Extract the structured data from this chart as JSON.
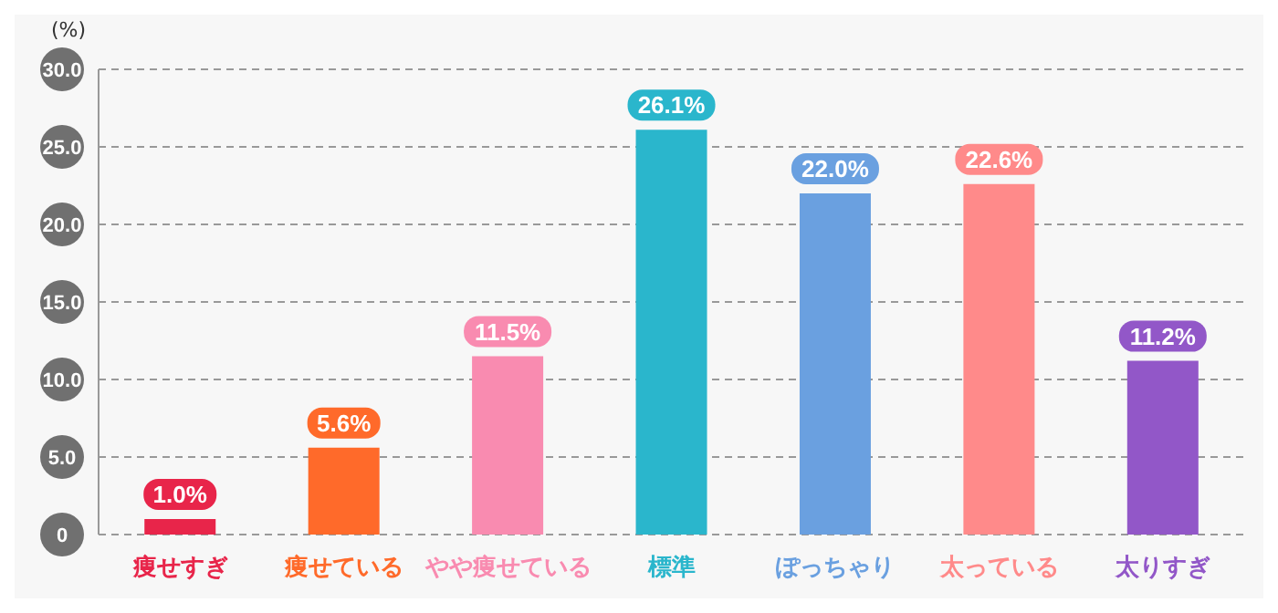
{
  "chart_data": {
    "type": "bar",
    "ylabel": "(%)",
    "categories": [
      "痩せすぎ",
      "痩せている",
      "やや痩せている",
      "標準",
      "ぽっちゃり",
      "太っている",
      "太りすぎ"
    ],
    "values": [
      1.0,
      5.6,
      11.5,
      26.1,
      22.0,
      22.6,
      11.2
    ],
    "colors": [
      "#e8254a",
      "#ff6a2a",
      "#f98bb0",
      "#2ab6cc",
      "#6aa0e0",
      "#ff8a8a",
      "#9257c8"
    ],
    "value_labels": [
      "1.0%",
      "5.6%",
      "11.5%",
      "26.1%",
      "22.0%",
      "22.6%",
      "11.2%"
    ],
    "ylim": [
      0,
      30
    ],
    "yticks": [
      0,
      {
        "value": 5,
        "label": "5.0"
      },
      {
        "value": 10,
        "label": "10.0"
      },
      {
        "value": 15,
        "label": "15.0"
      },
      {
        "value": 20,
        "label": "20.0"
      },
      {
        "value": 25,
        "label": "25.0"
      },
      {
        "value": 30,
        "label": "30.0"
      }
    ],
    "grid": "y"
  }
}
